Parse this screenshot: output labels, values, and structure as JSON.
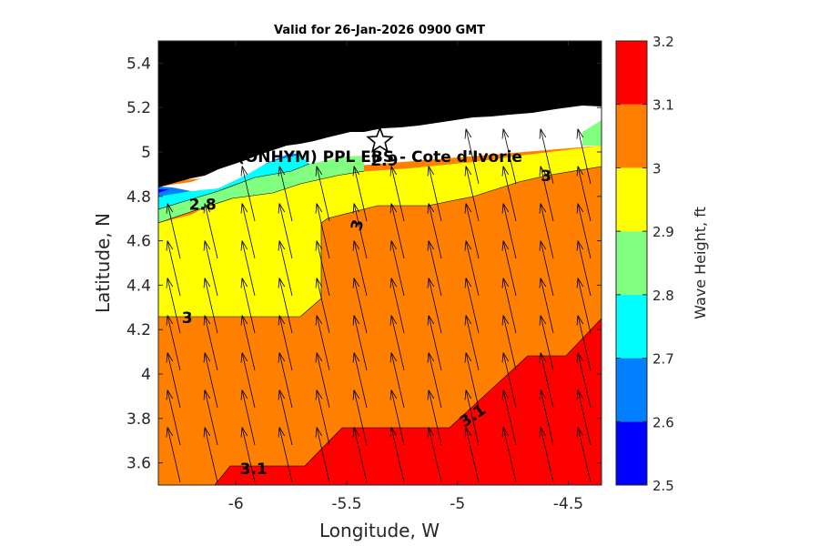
{
  "chart_data": {
    "type": "heatmap",
    "subtype": "filled-contour-with-vectors",
    "title": "Valid for 26-Jan-2026 0900 GMT",
    "xlabel": "Longitude, W",
    "ylabel": "Latitude, N",
    "xlim": [
      -6.35,
      -4.35
    ],
    "ylim": [
      3.5,
      5.5
    ],
    "x_ticks": [
      -6,
      -5.5,
      -5,
      -4.5
    ],
    "x_tick_labels": [
      "-6",
      "-5.5",
      "-5",
      "-4.5"
    ],
    "y_ticks": [
      3.6,
      3.8,
      4.0,
      4.2,
      4.4,
      4.6,
      4.8,
      5.0,
      5.2,
      5.4
    ],
    "y_tick_labels": [
      "3.6",
      "3.8",
      "4",
      "4.2",
      "4.4",
      "4.6",
      "4.8",
      "5",
      "5.2",
      "5.4"
    ],
    "colorbar": {
      "label": "Wave Height, ft",
      "range": [
        2.5,
        3.2
      ],
      "levels": [
        2.5,
        2.6,
        2.7,
        2.8,
        2.9,
        3.0,
        3.1,
        3.2
      ],
      "tick_labels": [
        "2.5",
        "2.6",
        "2.7",
        "2.8",
        "2.9",
        "3",
        "3.1",
        "3.2"
      ],
      "colors": [
        "#0000ff",
        "#0080ff",
        "#00ffff",
        "#80ff80",
        "#ffff00",
        "#ff8000",
        "#ff0000"
      ]
    },
    "land_color": "#000000",
    "contour_labels": [
      {
        "text": "2.8",
        "lon": -6.15,
        "lat": 4.76
      },
      {
        "text": "2.9",
        "lon": -5.33,
        "lat": 4.96
      },
      {
        "text": "3",
        "lon": -5.45,
        "lat": 4.67,
        "rotation": -75
      },
      {
        "text": "3",
        "lon": -4.6,
        "lat": 4.89
      },
      {
        "text": "3",
        "lon": -6.22,
        "lat": 4.25
      },
      {
        "text": "3.1",
        "lon": -5.92,
        "lat": 3.57
      },
      {
        "text": "3.1",
        "lon": -4.93,
        "lat": 3.81,
        "rotation": -35
      }
    ],
    "station": {
      "label": "(ONHYM) PPL EBS - Cote d'Ivorie",
      "marker": "star",
      "lon": -5.35,
      "lat": 5.05
    },
    "wave_direction": {
      "description": "arrows pointing north-northwest",
      "direction_deg_from_north": -13
    }
  }
}
